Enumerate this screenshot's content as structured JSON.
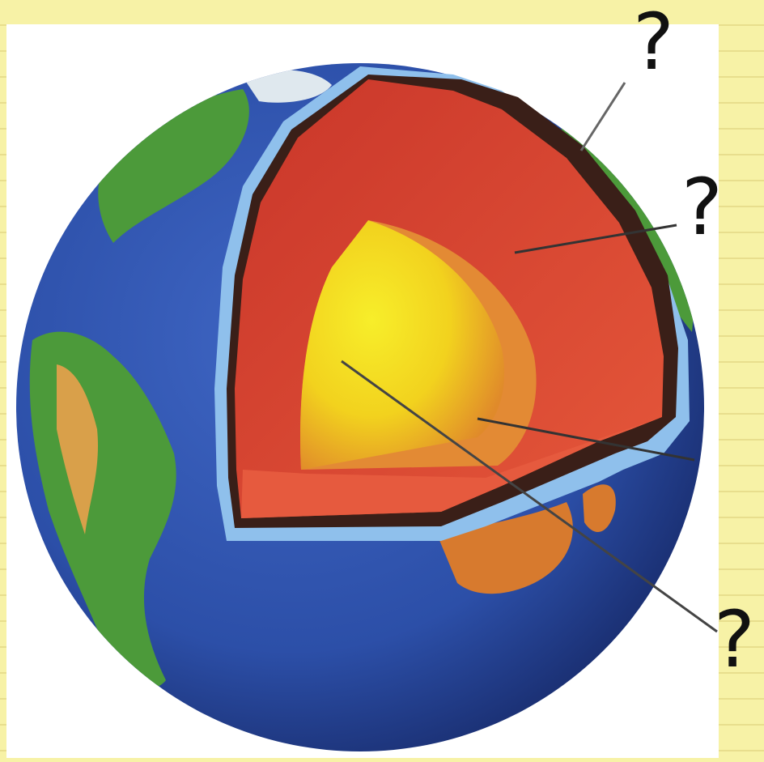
{
  "diagram": {
    "labels": [
      {
        "id": "crust",
        "text": "?"
      },
      {
        "id": "mantle",
        "text": "?"
      },
      {
        "id": "core",
        "text": "?"
      }
    ],
    "colors": {
      "background": "#f7f2a6",
      "ocean": "#2c4fa8",
      "land": "#4c9a3a",
      "mantle": "#d8412c",
      "outer_core": "#e89a2a",
      "inner_core": "#f2e21e",
      "crust_edge": "#7fb4e8"
    }
  }
}
